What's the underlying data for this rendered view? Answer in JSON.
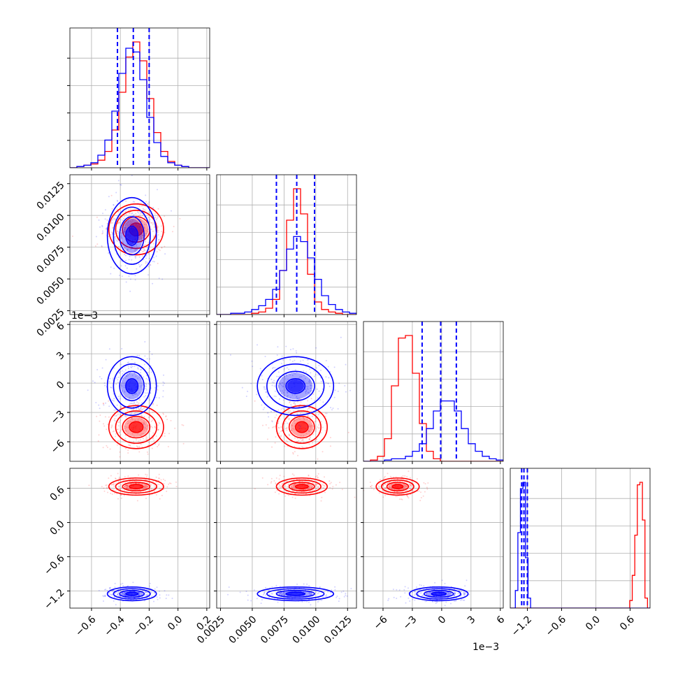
{
  "colors": {
    "a": "#ff0000",
    "b": "#0000ff"
  },
  "chart_data": {
    "type": "corner",
    "n_params": 4,
    "params": [
      {
        "range": [
          -0.75,
          0.22
        ],
        "ticks": [
          -0.6,
          -0.4,
          -0.2,
          0.0,
          0.2
        ],
        "tick_labels": [
          "−0.6",
          "−0.4",
          "−0.2",
          "0.0",
          "0.2"
        ]
      },
      {
        "range": [
          0.0022,
          0.0132
        ],
        "ticks": [
          0.0025,
          0.005,
          0.0075,
          0.01,
          0.0125
        ],
        "tick_labels": [
          "0.0025",
          "0.0050",
          "0.0075",
          "0.0100",
          "0.0125"
        ]
      },
      {
        "range": [
          -8.0,
          6.3
        ],
        "ticks": [
          -6,
          -3,
          0,
          3,
          6
        ],
        "tick_labels": [
          "−6",
          "−3",
          "0",
          "3",
          "6"
        ],
        "offset_text": "1e−3"
      },
      {
        "range": [
          -1.5,
          0.95
        ],
        "ticks": [
          -1.2,
          -0.6,
          0.0,
          0.6
        ],
        "tick_labels": [
          "−1.2",
          "−0.6",
          "0.0",
          "0.6"
        ]
      }
    ],
    "series": [
      {
        "color": "#ff0000",
        "mean": [
          -0.29,
          0.0089,
          -4.5,
          0.63
        ],
        "sd": [
          0.095,
          0.001,
          1.1,
          0.075
        ]
      },
      {
        "color": "#0000ff",
        "mean": [
          -0.32,
          0.0084,
          -0.3,
          -1.25
        ],
        "sd": [
          0.085,
          0.0015,
          1.5,
          0.06
        ]
      }
    ],
    "quantile_lines": [
      [
        -0.42,
        -0.31,
        -0.2
      ],
      [
        0.0069,
        0.0085,
        0.0099
      ],
      [
        -2.0,
        -0.1,
        1.5
      ],
      [
        -1.3,
        -1.26,
        -1.2
      ]
    ],
    "histograms": [
      {
        "bins": [
          -0.75,
          0.22
        ],
        "series": [
          {
            "color": "#ff0000",
            "values": [
              0,
              1,
              2,
              3,
              6,
              13,
              30,
              60,
              88,
              100,
              85,
              55,
              28,
              13,
              5,
              2,
              1,
              0,
              0,
              0
            ]
          },
          {
            "color": "#0000ff",
            "values": [
              0,
              1,
              2,
              4,
              10,
              22,
              45,
              75,
              95,
              92,
              70,
              40,
              20,
              9,
              4,
              2,
              1,
              0,
              0,
              0
            ]
          }
        ]
      },
      {
        "bins": [
          0.0022,
          0.0132
        ],
        "series": [
          {
            "color": "#ff0000",
            "values": [
              0,
              0,
              0,
              0,
              0,
              1,
              2,
              5,
              12,
              35,
              75,
              100,
              80,
              32,
              10,
              4,
              2,
              1,
              0,
              0
            ]
          },
          {
            "color": "#0000ff",
            "values": [
              0,
              0,
              1,
              1,
              2,
              4,
              7,
              12,
              20,
              35,
              52,
              62,
              58,
              45,
              28,
              15,
              8,
              4,
              2,
              1
            ]
          }
        ]
      },
      {
        "bins": [
          -8.0,
          6.3
        ],
        "series": [
          {
            "color": "#ff0000",
            "values": [
              0,
              1,
              4,
              18,
              60,
              98,
              100,
              70,
              30,
              8,
              2,
              0,
              0,
              0,
              0,
              0,
              0,
              0,
              0,
              0
            ]
          },
          {
            "color": "#0000ff",
            "values": [
              0,
              0,
              0,
              1,
              2,
              2,
              4,
              8,
              14,
              26,
              40,
              48,
              48,
              40,
              26,
              14,
              8,
              4,
              2,
              1
            ]
          }
        ]
      },
      {
        "bins": [
          -1.5,
          0.95
        ],
        "series": [
          {
            "color": "#ff0000",
            "values": [
              0,
              0,
              0,
              0,
              0,
              0,
              0,
              0,
              0,
              0,
              0,
              0,
              0,
              0,
              0,
              0,
              0,
              0,
              0,
              0,
              0,
              0,
              0,
              0,
              0,
              0,
              0,
              0,
              0,
              0,
              0,
              0,
              0,
              0,
              0,
              0,
              0,
              0,
              0,
              0,
              0,
              0,
              0,
              0,
              0,
              0,
              0,
              6,
              26,
              58,
              98,
              100,
              70,
              8,
              0
            ]
          },
          {
            "color": "#0000ff",
            "values": [
              0,
              0,
              14,
              60,
              95,
              100,
              40,
              8,
              0,
              0,
              0,
              0,
              0,
              0,
              0,
              0,
              0,
              0,
              0,
              0,
              0,
              0,
              0,
              0,
              0,
              0,
              0,
              0,
              0,
              0,
              0,
              0,
              0,
              0,
              0,
              0,
              0,
              0,
              0,
              0,
              0,
              0,
              0,
              0,
              0,
              0,
              0,
              0,
              0,
              0,
              0,
              0,
              0,
              0,
              0
            ]
          }
        ]
      }
    ],
    "grid": true
  }
}
